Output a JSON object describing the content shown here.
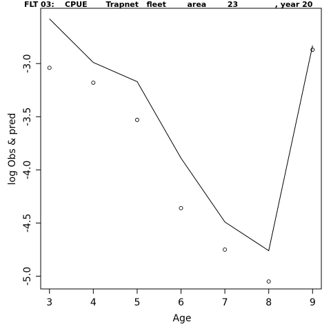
{
  "chart_data": {
    "type": "line",
    "title": "FLT 03:    CPUE       Trapnet   fleet        area        23              , year 20",
    "xlabel": "Age",
    "ylabel": "log Obs & pred",
    "xlim": [
      2.8,
      9.2
    ],
    "ylim": [
      -5.12,
      -2.48
    ],
    "x_ticks": [
      3,
      4,
      5,
      6,
      7,
      8,
      9
    ],
    "y_ticks": [
      -5.0,
      -4.5,
      -4.0,
      -3.5,
      -3.0
    ],
    "y_tick_labels": [
      "-5.0",
      "-4.5",
      "-4.0",
      "-3.5",
      "-3.0"
    ],
    "series": [
      {
        "style": "points",
        "x": [
          3,
          4,
          5,
          6,
          7,
          8,
          9
        ],
        "y": [
          -3.04,
          -3.18,
          -3.53,
          -4.36,
          -4.75,
          -5.05,
          -2.87
        ]
      },
      {
        "style": "line",
        "x": [
          3,
          4,
          5,
          6,
          7,
          8,
          9
        ],
        "y": [
          -2.58,
          -2.99,
          -3.17,
          -3.89,
          -4.49,
          -4.76,
          -2.83
        ]
      }
    ]
  }
}
